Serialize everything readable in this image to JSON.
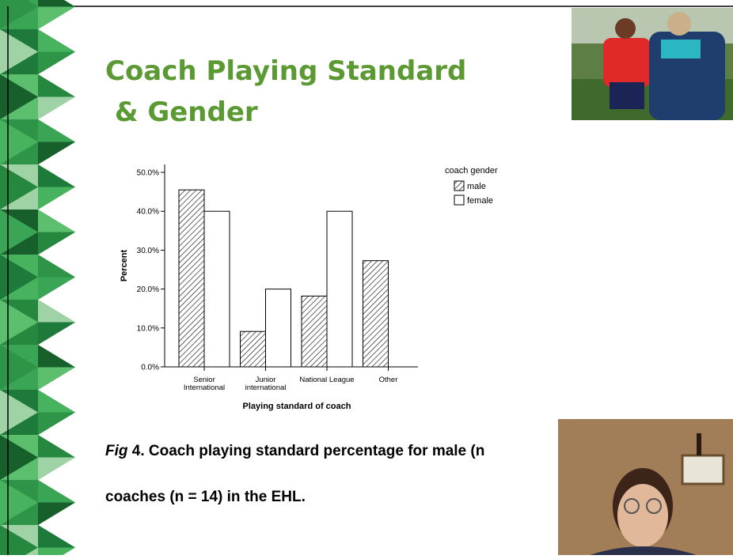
{
  "slide": {
    "title_lines": [
      "Coach Playing Standard",
      " & Gender"
    ],
    "caption": {
      "fig": "Fig",
      "line1": " 4. Coach playing standard percentage for male (n",
      "line2": "coaches (n = 14) in the EHL."
    }
  },
  "chart_data": {
    "type": "bar",
    "categories": [
      "Senior International",
      "Junior international",
      "National League",
      "Other"
    ],
    "series": [
      {
        "name": "male",
        "color": "hatch",
        "values": [
          45.5,
          9.1,
          18.2,
          27.3
        ]
      },
      {
        "name": "female",
        "color": "#ffffff",
        "values": [
          40,
          20,
          40,
          0
        ]
      }
    ],
    "legend_title": "coach gender",
    "ylabel": "Percent",
    "xlabel": "Playing standard of coach",
    "ylim": [
      0,
      50
    ],
    "yticks": [
      {
        "value": 0,
        "label": "0.0%"
      },
      {
        "value": 10,
        "label": "10.0%"
      },
      {
        "value": 20,
        "label": "20.0%"
      },
      {
        "value": 30,
        "label": "30.0%"
      },
      {
        "value": 40,
        "label": "40.0%"
      },
      {
        "value": 50,
        "label": "50.0%"
      }
    ]
  }
}
